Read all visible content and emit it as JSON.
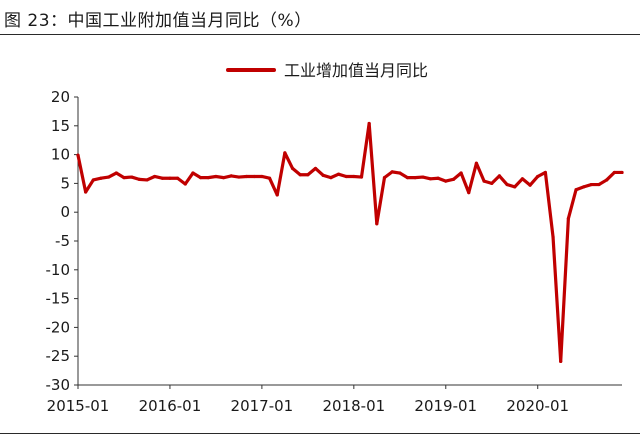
{
  "figure_title": "图 23：中国工业附加值当月同比（%）",
  "chart_data": {
    "type": "line",
    "title": "",
    "xlabel": "",
    "ylabel": "",
    "ylim": [
      -30,
      20
    ],
    "yticks": [
      "20",
      "15",
      "10",
      "5",
      "0",
      "-5",
      "-10",
      "-15",
      "-20",
      "-25",
      "-30"
    ],
    "xticks": [
      "2015-01",
      "2016-01",
      "2017-01",
      "2018-01",
      "2019-01",
      "2020-01"
    ],
    "legend_position": "top-center",
    "grid": false,
    "series": [
      {
        "name": "工业增加值当月同比",
        "color": "#c00000",
        "points": [
          [
            "2015-01",
            9.9
          ],
          [
            "2015-02",
            3.5
          ],
          [
            "2015-03",
            5.6
          ],
          [
            "2015-04",
            5.9
          ],
          [
            "2015-05",
            6.1
          ],
          [
            "2015-06",
            6.8
          ],
          [
            "2015-07",
            6.0
          ],
          [
            "2015-08",
            6.1
          ],
          [
            "2015-09",
            5.7
          ],
          [
            "2015-10",
            5.6
          ],
          [
            "2015-11",
            6.2
          ],
          [
            "2015-12",
            5.9
          ],
          [
            "2016-01",
            5.9
          ],
          [
            "2016-02",
            5.9
          ],
          [
            "2016-03",
            4.9
          ],
          [
            "2016-04",
            6.8
          ],
          [
            "2016-05",
            6.0
          ],
          [
            "2016-06",
            6.0
          ],
          [
            "2016-07",
            6.2
          ],
          [
            "2016-08",
            6.0
          ],
          [
            "2016-09",
            6.3
          ],
          [
            "2016-10",
            6.1
          ],
          [
            "2016-11",
            6.2
          ],
          [
            "2016-12",
            6.2
          ],
          [
            "2017-01",
            6.2
          ],
          [
            "2017-02",
            5.9
          ],
          [
            "2017-03",
            3.0
          ],
          [
            "2017-04",
            10.3
          ],
          [
            "2017-05",
            7.6
          ],
          [
            "2017-06",
            6.5
          ],
          [
            "2017-07",
            6.5
          ],
          [
            "2017-08",
            7.6
          ],
          [
            "2017-09",
            6.4
          ],
          [
            "2017-10",
            6.0
          ],
          [
            "2017-11",
            6.6
          ],
          [
            "2017-12",
            6.2
          ],
          [
            "2018-01",
            6.2
          ],
          [
            "2018-02",
            6.1
          ],
          [
            "2018-03",
            15.4
          ],
          [
            "2018-04",
            -2.0
          ],
          [
            "2018-05",
            6.0
          ],
          [
            "2018-06",
            7.0
          ],
          [
            "2018-07",
            6.8
          ],
          [
            "2018-08",
            6.0
          ],
          [
            "2018-09",
            6.0
          ],
          [
            "2018-10",
            6.1
          ],
          [
            "2018-11",
            5.8
          ],
          [
            "2018-12",
            5.9
          ],
          [
            "2019-01",
            5.4
          ],
          [
            "2019-02",
            5.7
          ],
          [
            "2019-03",
            6.8
          ],
          [
            "2019-04",
            3.4
          ],
          [
            "2019-05",
            8.5
          ],
          [
            "2019-06",
            5.4
          ],
          [
            "2019-07",
            5.0
          ],
          [
            "2019-08",
            6.3
          ],
          [
            "2019-09",
            4.8
          ],
          [
            "2019-10",
            4.4
          ],
          [
            "2019-11",
            5.8
          ],
          [
            "2019-12",
            4.7
          ],
          [
            "2020-01",
            6.2
          ],
          [
            "2020-02",
            6.9
          ],
          [
            "2020-03",
            -4.3
          ],
          [
            "2020-04",
            -25.9
          ],
          [
            "2020-05",
            -1.1
          ],
          [
            "2020-06",
            3.9
          ],
          [
            "2020-07",
            4.4
          ],
          [
            "2020-08",
            4.8
          ],
          [
            "2020-09",
            4.8
          ],
          [
            "2020-10",
            5.6
          ],
          [
            "2020-11",
            6.9
          ],
          [
            "2020-12",
            6.9
          ]
        ]
      }
    ]
  }
}
